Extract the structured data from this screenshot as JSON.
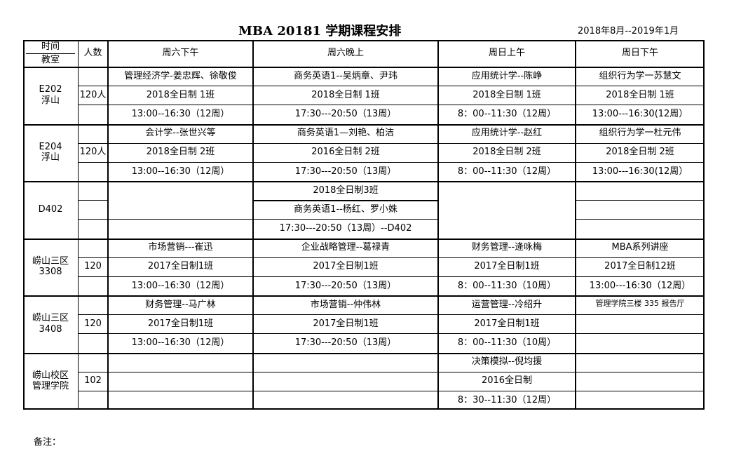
{
  "title": "MBA 20181 学期课程安排",
  "period": "2018年8月--2019年1月",
  "note": "备注：",
  "header": {
    "time_label": "时间",
    "room_label": "教室",
    "count_label": "人数",
    "columns": [
      "周六下午",
      "周六晚上",
      "周日上午",
      "周日下午"
    ]
  },
  "blocks": [
    {
      "room": [
        "E202",
        "浮山"
      ],
      "count": "120人",
      "cells": [
        [
          "管理经济学-姜忠辉、徐敬俊",
          "2018全日制 1班",
          "13:00--16:30（12周）"
        ],
        [
          "商务英语1--吴炳章、尹玮",
          "2018全日制 1班",
          "17:30---20:50（13周）"
        ],
        [
          "应用统计学--陈峥",
          "2018全日制 1班",
          "8：00--11:30（12周）"
        ],
        [
          "组织行为学一苏慧文",
          "2018全日制 1班",
          "13:00---16:30(12周）"
        ]
      ]
    },
    {
      "room": [
        "E204",
        "浮山"
      ],
      "count": "120人",
      "cells": [
        [
          "会计学--张世兴等",
          "2018全日制 2班",
          "13:00--16:30（12周）"
        ],
        [
          "商务英语1—刘艳、柏洁",
          "2016全日制 2班",
          "17:30---20:50（13周）"
        ],
        [
          "应用统计学--赵红",
          "2018全日制 2班",
          "8：00--11:30（12周）"
        ],
        [
          "组织行为学一杜元伟",
          "2018全日制 2班",
          "13:00---16:30(12周）"
        ]
      ]
    },
    {
      "room": [
        "D402"
      ],
      "count": "",
      "cells": [
        [
          "",
          "",
          ""
        ],
        [
          "2018全日制3班",
          "商务英语1--杨红、罗小姝",
          "17:30---20:50（13周）--D402"
        ],
        [
          "",
          "",
          ""
        ],
        [
          "",
          "",
          ""
        ]
      ]
    },
    {
      "room": [
        "崂山三区",
        "3308"
      ],
      "count": "120",
      "cells": [
        [
          "市场营销---崔迅",
          "2017全日制1班",
          "13:00--16:30（12周）"
        ],
        [
          "企业战略管理--葛禄青",
          "2017全日制1班",
          "17:30---20:50（13周）"
        ],
        [
          "财务管理--逄咏梅",
          "2017全日制1班",
          "8：00--11:30（10周）"
        ],
        [
          "MBA系列讲座",
          "2017全日制12班",
          "13:00---16:30（12周）"
        ]
      ]
    },
    {
      "room": [
        "崂山三区",
        "3408"
      ],
      "count": "120",
      "cells": [
        [
          "财务管理--马广林",
          "2017全日制1班",
          "13:00--16:30（12周）"
        ],
        [
          "市场营销--仲伟林",
          "2017全日制1班",
          "17:30---20:50（13周）"
        ],
        [
          "运营管理--冷绍升",
          "2017全日制1班",
          "8：00--11:30（10周）"
        ],
        [
          "管理学院三楼 335 报告厅",
          "",
          ""
        ]
      ]
    },
    {
      "room": [
        "崂山校区",
        "管理学院"
      ],
      "count": "102",
      "cells": [
        [
          "",
          "",
          ""
        ],
        [
          "",
          "",
          ""
        ],
        [
          "决策模拟--倪均援",
          "2016全日制",
          "8：30--11:30（12周）"
        ],
        [
          "",
          "",
          ""
        ]
      ]
    }
  ]
}
